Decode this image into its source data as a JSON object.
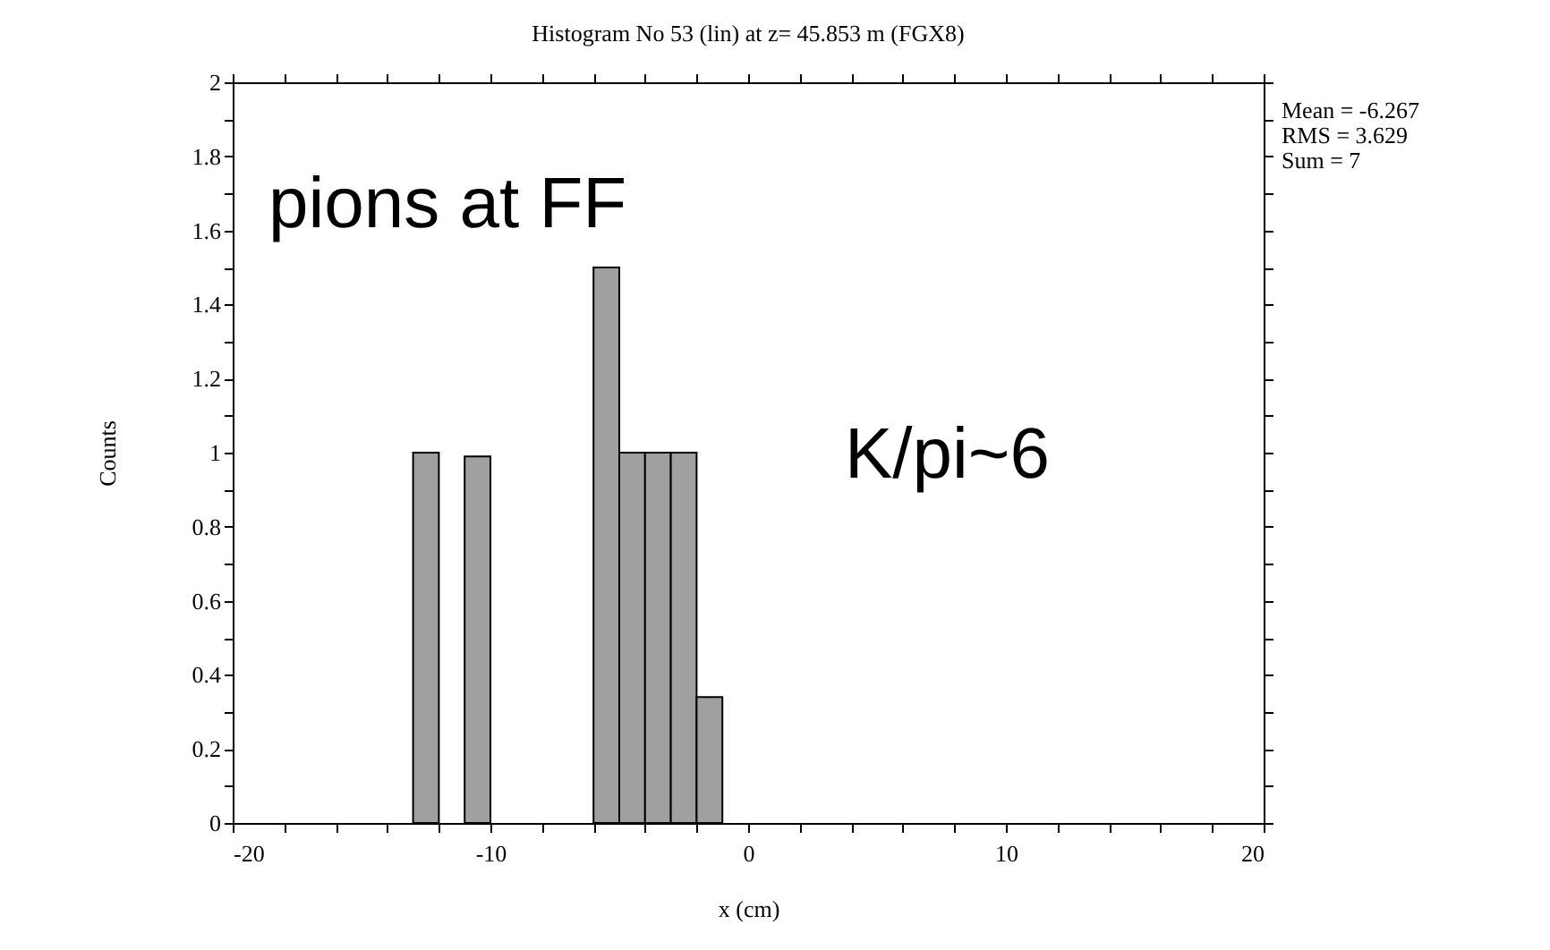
{
  "chart_data": {
    "type": "histogram",
    "title": "Histogram No 53 (lin) at z= 45.853 m (FGX8)",
    "xlabel": "x (cm)",
    "ylabel": "Counts",
    "bins": [
      -13,
      -12,
      -11,
      -10,
      -9,
      -8,
      -7,
      -6,
      -5,
      -4,
      -3,
      -2,
      -1
    ],
    "values": [
      1,
      0,
      0.99,
      0,
      0,
      0,
      0,
      1.5,
      1,
      1,
      1,
      0.34
    ],
    "color": "#a0a0a0",
    "xlim": [
      -20,
      20
    ],
    "xticks": [
      -20,
      {
        "value": -18,
        "label": null
      },
      {
        "value": -16,
        "label": null
      },
      {
        "value": -14,
        "label": null
      },
      {
        "value": -12,
        "label": null
      },
      -10,
      {
        "value": -8,
        "label": null
      },
      {
        "value": -6,
        "label": null
      },
      {
        "value": -4,
        "label": null
      },
      {
        "value": -2,
        "label": null
      },
      0,
      {
        "value": 2,
        "label": null
      },
      {
        "value": 4,
        "label": null
      },
      {
        "value": 6,
        "label": null
      },
      {
        "value": 8,
        "label": null
      },
      10,
      {
        "value": 12,
        "label": null
      },
      {
        "value": 14,
        "label": null
      },
      {
        "value": 16,
        "label": null
      },
      {
        "value": 18,
        "label": null
      },
      20
    ],
    "ylim": [
      0,
      2
    ],
    "yticks": [
      0,
      {
        "value": 0.1,
        "label": null
      },
      0.2,
      {
        "value": 0.3,
        "label": null
      },
      0.4,
      {
        "value": 0.5,
        "label": null
      },
      0.6,
      {
        "value": 0.7,
        "label": null
      },
      0.8,
      {
        "value": 0.9,
        "label": null
      },
      1,
      {
        "value": 1.1,
        "label": null
      },
      1.2,
      {
        "value": 1.3,
        "label": null
      },
      1.4,
      {
        "value": 1.5,
        "label": null
      },
      1.6,
      {
        "value": 1.7,
        "label": null
      },
      1.8,
      {
        "value": 1.9,
        "label": null
      },
      2
    ],
    "annotations": [
      "pions at FF",
      "K/pi~6",
      "Mean = -6.267",
      "RMS = 3.629",
      "Sum = 7"
    ]
  }
}
